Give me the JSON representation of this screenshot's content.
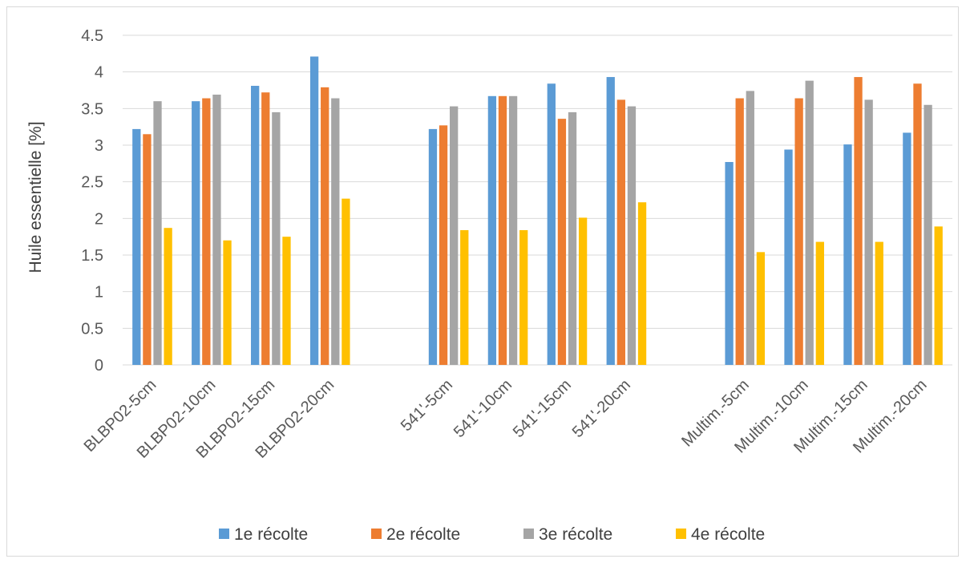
{
  "chart_data": {
    "type": "bar",
    "title": "",
    "xlabel": "",
    "ylabel": "Huile essentielle [%]",
    "ylim": [
      0,
      4.5
    ],
    "yticks": [
      "0",
      "0.5",
      "1",
      "1.5",
      "2",
      "2.5",
      "3",
      "3.5",
      "4",
      "4.5"
    ],
    "grid": true,
    "legend_position": "bottom",
    "categories": [
      "BLBP02-5cm",
      "BLBP02-10cm",
      "BLBP02-15cm",
      "BLBP02-20cm",
      "",
      "541'-5cm",
      "541'-10cm",
      "541'-15cm",
      "541'-20cm",
      "",
      "Multim.-5cm",
      "Multim.-10cm",
      "Multim.-15cm",
      "Multim.-20cm"
    ],
    "series": [
      {
        "name": "1e récolte",
        "color": "#5B9BD5",
        "values": [
          3.22,
          3.6,
          3.81,
          4.21,
          null,
          3.22,
          3.67,
          3.84,
          3.93,
          null,
          2.77,
          2.94,
          3.01,
          3.17
        ]
      },
      {
        "name": "2e récolte",
        "color": "#ED7D31",
        "values": [
          3.15,
          3.64,
          3.72,
          3.79,
          null,
          3.27,
          3.67,
          3.36,
          3.62,
          null,
          3.64,
          3.64,
          3.93,
          3.84
        ]
      },
      {
        "name": "3e récolte",
        "color": "#A5A5A5",
        "values": [
          3.6,
          3.69,
          3.45,
          3.64,
          null,
          3.53,
          3.67,
          3.45,
          3.53,
          null,
          3.74,
          3.88,
          3.62,
          3.55
        ]
      },
      {
        "name": "4e récolte",
        "color": "#FFC000",
        "values": [
          1.87,
          1.7,
          1.75,
          2.27,
          null,
          1.84,
          1.84,
          2.01,
          2.22,
          null,
          1.54,
          1.68,
          1.68,
          1.89
        ]
      }
    ]
  }
}
